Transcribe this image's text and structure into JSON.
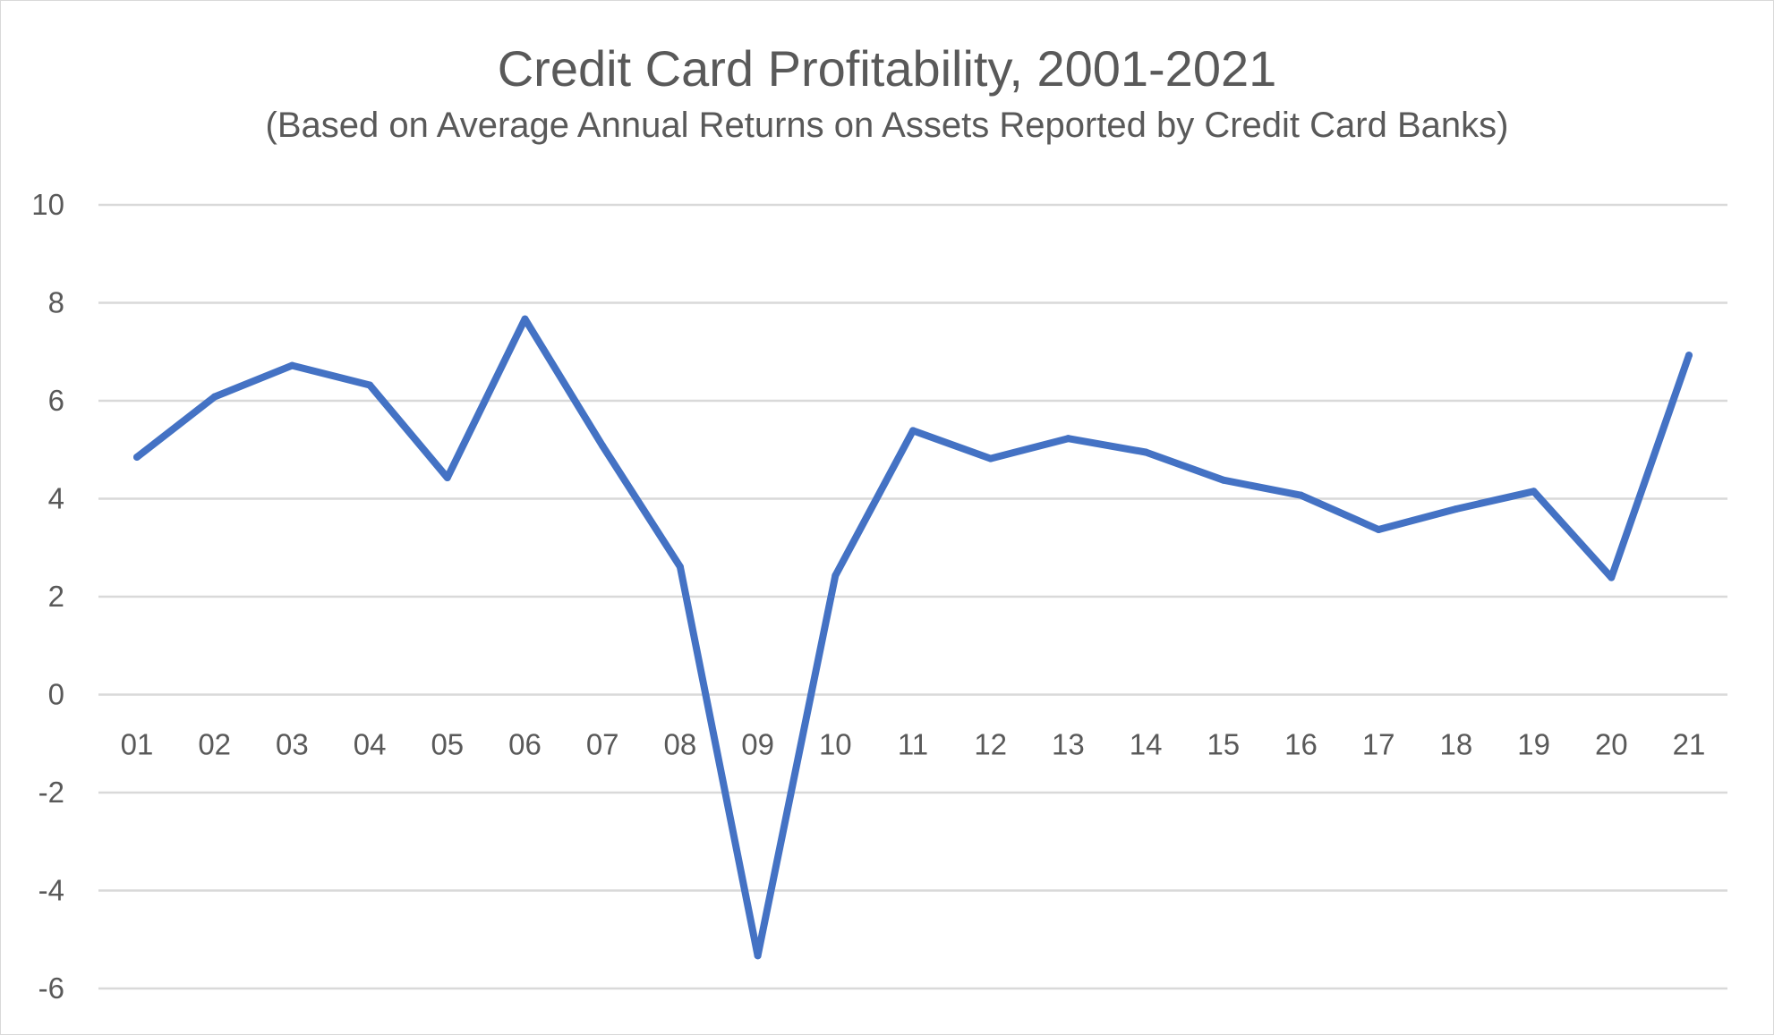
{
  "chart_data": {
    "type": "line",
    "title": "Credit Card Profitability, 2001-2021",
    "subtitle": "(Based on Average Annual Returns on Assets Reported by Credit Card Banks)",
    "xlabel": "",
    "ylabel": "",
    "categories": [
      "01",
      "02",
      "03",
      "04",
      "05",
      "06",
      "07",
      "08",
      "09",
      "10",
      "11",
      "12",
      "13",
      "14",
      "15",
      "16",
      "17",
      "18",
      "19",
      "20",
      "21"
    ],
    "series": [
      {
        "name": "",
        "values": [
          4.85,
          6.08,
          6.72,
          6.32,
          4.43,
          7.67,
          5.08,
          2.61,
          -5.33,
          2.43,
          5.39,
          4.82,
          5.23,
          4.95,
          4.38,
          4.07,
          3.37,
          3.79,
          4.15,
          2.39,
          6.93
        ]
      }
    ],
    "ylim": [
      -6,
      10
    ],
    "yticks": [
      10,
      8,
      6,
      4,
      2,
      0,
      -2,
      -4,
      -6
    ],
    "grid": true,
    "legend": "none",
    "colors": {
      "line": "#4472c4",
      "grid": "#d9d9d9",
      "text": "#595959"
    }
  }
}
